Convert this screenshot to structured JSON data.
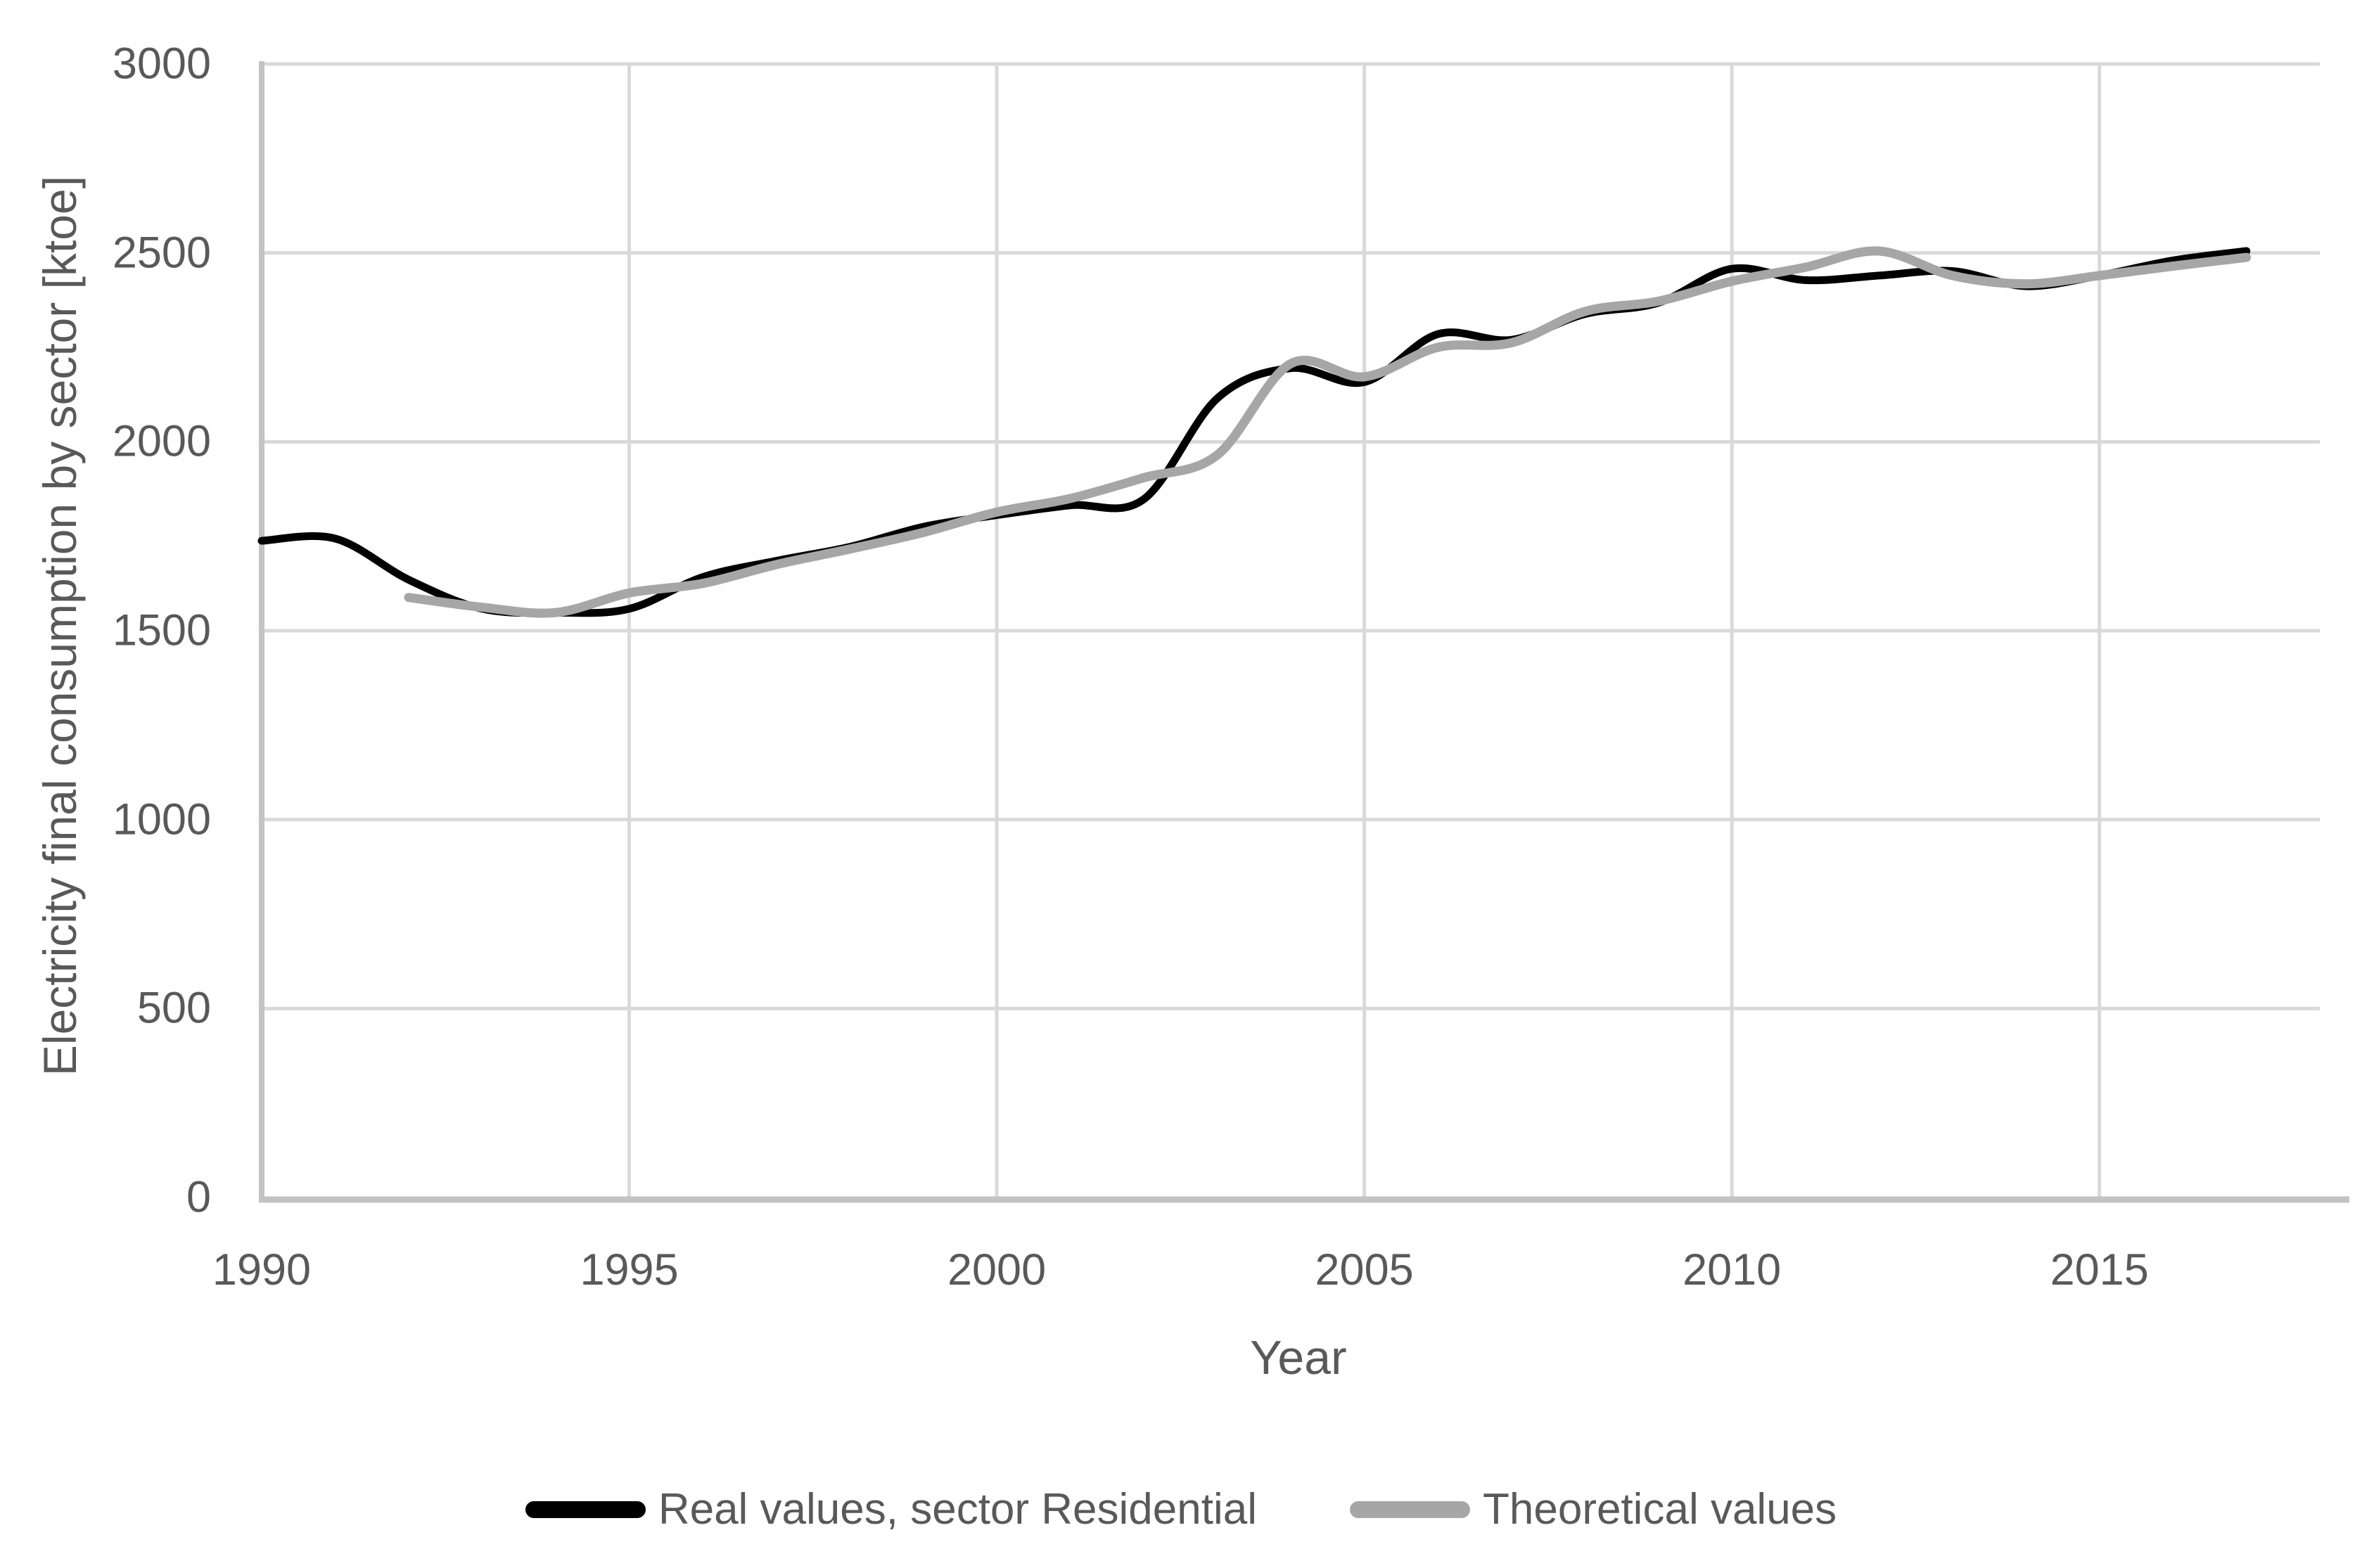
{
  "chart_data": {
    "type": "line",
    "title": "",
    "xlabel": "Year",
    "ylabel": "Electricity final consumption by sector [ktoe]",
    "x_ticks": [
      1990,
      1995,
      2000,
      2005,
      2010,
      2015
    ],
    "y_ticks": [
      0,
      500,
      1000,
      1500,
      2000,
      2500,
      3000
    ],
    "xlim": [
      1990,
      2018.4
    ],
    "ylim": [
      0,
      3000
    ],
    "grid": true,
    "legend_position": "bottom-center",
    "line_style": "smooth",
    "series": [
      {
        "name": "Real values, sector Residential",
        "color": "#000000",
        "line_width": 11,
        "x": [
          1990,
          1991,
          1992,
          1993,
          1994,
          1995,
          1996,
          1997,
          1998,
          1999,
          2000,
          2001,
          2002,
          2003,
          2004,
          2005,
          2006,
          2007,
          2008,
          2009,
          2010,
          2011,
          2012,
          2013,
          2014,
          2015,
          2016,
          2017
        ],
        "values": [
          1738,
          1744,
          1635,
          1558,
          1548,
          1558,
          1642,
          1685,
          1722,
          1775,
          1806,
          1832,
          1848,
          2115,
          2195,
          2158,
          2285,
          2270,
          2338,
          2368,
          2458,
          2428,
          2440,
          2452,
          2412,
          2440,
          2480,
          2505
        ]
      },
      {
        "name": "Theoretical values",
        "color": "#a6a6a6",
        "line_width": 13,
        "x": [
          1992,
          1993,
          1994,
          1995,
          1996,
          1997,
          1998,
          1999,
          2000,
          2001,
          2002,
          2003,
          2004,
          2005,
          2006,
          2007,
          2008,
          2009,
          2010,
          2011,
          2012,
          2013,
          2014,
          2015,
          2016,
          2017
        ],
        "values": [
          1588,
          1562,
          1548,
          1600,
          1625,
          1675,
          1716,
          1760,
          1814,
          1850,
          1905,
          1965,
          2207,
          2172,
          2250,
          2262,
          2345,
          2372,
          2425,
          2462,
          2505,
          2440,
          2418,
          2440,
          2465,
          2488
        ]
      }
    ]
  },
  "legend": {
    "items": [
      {
        "label": "Real values, sector Residential",
        "color": "#000000"
      },
      {
        "label": "Theoretical values",
        "color": "#a6a6a6"
      }
    ]
  },
  "colors": {
    "background": "#ffffff",
    "gridline": "#d9d9d9",
    "axis_line": "#c3c3c3",
    "text": "#595959"
  }
}
